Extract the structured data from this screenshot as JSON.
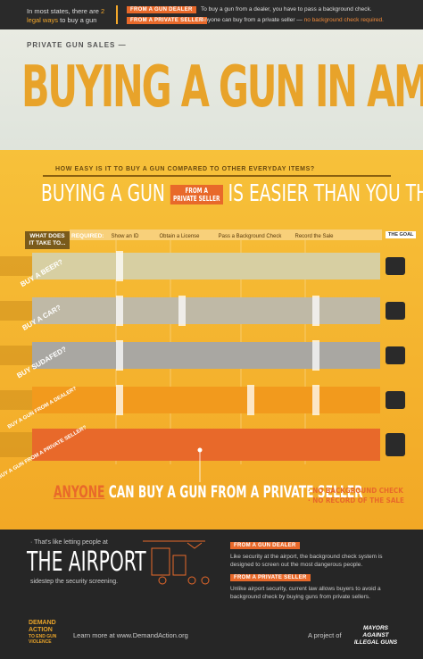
{
  "top_bar": {
    "intro": "In most states, there are",
    "intro_highlight": "2 legal ways",
    "intro_end": "to buy a gun",
    "ways": [
      {
        "tag": "FROM A GUN DEALER",
        "text": "To buy a gun from a dealer, you have to pass a background check.",
        "highlight": ""
      },
      {
        "tag": "FROM A PRIVATE SELLER",
        "text": "Anyone can buy from a private seller —",
        "highlight": "no background check required."
      }
    ]
  },
  "header": {
    "kicker": "PRIVATE GUN SALES —",
    "title": "BUYING A GUN IN AMERICA"
  },
  "comparison": {
    "question": "HOW EASY IS IT TO BUY A GUN COMPARED TO OTHER EVERYDAY ITEMS?",
    "headline_start": "BUYING A GUN",
    "headline_badge_small": "FROM A",
    "headline_badge": "PRIVATE SELLER",
    "headline_end": "IS EASIER THAN YOU THINK",
    "row_header": "WHAT DOES IT TAKE TO...",
    "required": "REQUIRED:",
    "columns": [
      "Show an ID",
      "Obtain a License",
      "Pass a Background Check",
      "Record the Sale"
    ],
    "goal": "THE GOAL",
    "rows": [
      "BUY A BEER?",
      "BUY A CAR?",
      "BUY SUDAFED?",
      "BUY A GUN FROM A DEALER?",
      "BUY A GUN FROM A PRIVATE SELLER?"
    ],
    "conclusion_start": "ANYONE",
    "conclusion": "CAN BUY A GUN FROM A PRIVATE SELLER",
    "notes": [
      "· NO BACKGROUND CHECK",
      "· NO RECORD OF THE SALE"
    ]
  },
  "airport": {
    "lead": "· That's like letting people at",
    "title": "THE AIRPORT",
    "tail": "sidestep the security screening.",
    "items": [
      {
        "tag": "FROM A GUN DEALER",
        "text": "Like security at the airport, the background check system is designed to screen out the most dangerous people."
      },
      {
        "tag": "FROM A PRIVATE SELLER",
        "text": "Unlike airport security, current law allows buyers to avoid a background check by buying guns from private sellers."
      }
    ]
  },
  "footer": {
    "brand": "DEMAND ACTION",
    "brand_sub": "TO END GUN VIOLENCE",
    "learn": "Learn more at www.DemandAction.org",
    "project": "A project of",
    "partner": "MAYORS AGAINST ILLEGAL GUNS"
  }
}
